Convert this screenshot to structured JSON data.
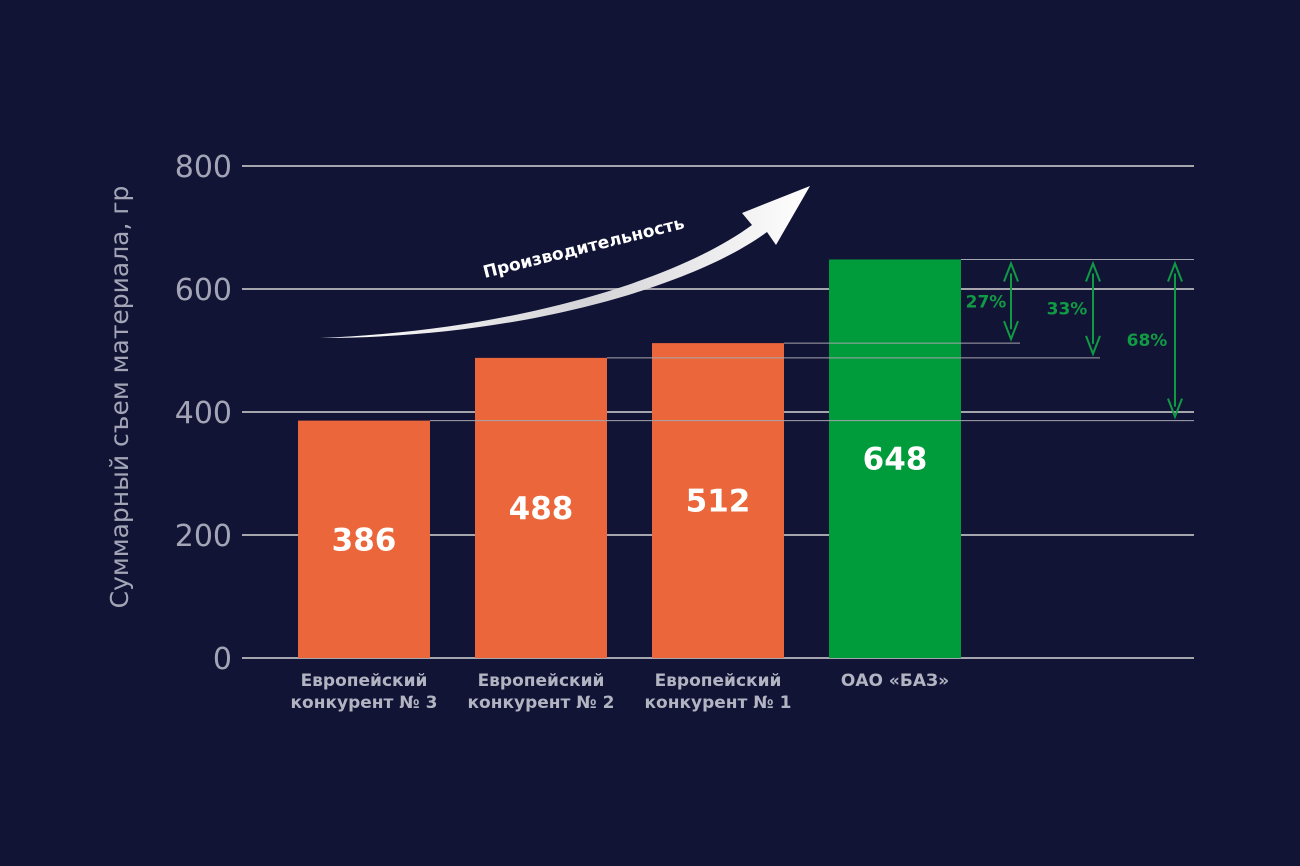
{
  "chart_data": {
    "type": "bar",
    "ylabel": "Суммарный съем материала, гр",
    "ylim": [
      0,
      800
    ],
    "yticks": [
      0,
      200,
      400,
      600,
      800
    ],
    "grid": true,
    "categories": [
      [
        "Европейский",
        "конкурент № 3"
      ],
      [
        "Европейский",
        "конкурент № 2"
      ],
      [
        "Европейский",
        "конкурент № 1"
      ],
      [
        "ОАО «БАЗ»"
      ]
    ],
    "values": [
      386,
      488,
      512,
      648
    ],
    "value_labels": [
      "386",
      "488",
      "512",
      "648"
    ],
    "bar_colors": [
      "#eb673b",
      "#eb673b",
      "#eb673b",
      "#009b3a"
    ],
    "comparisons": [
      {
        "label": "27%",
        "from": 512,
        "to": 648
      },
      {
        "label": "33%",
        "from": 488,
        "to": 648
      },
      {
        "label": "68%",
        "from": 386,
        "to": 648
      }
    ],
    "annotation": "Производительность"
  },
  "colors": {
    "background": "#121436",
    "grid": "#a5a5ad",
    "competitor": "#eb673b",
    "baz": "#009b3a",
    "comparison": "#0f9b43",
    "text": "#a3a5b6"
  }
}
